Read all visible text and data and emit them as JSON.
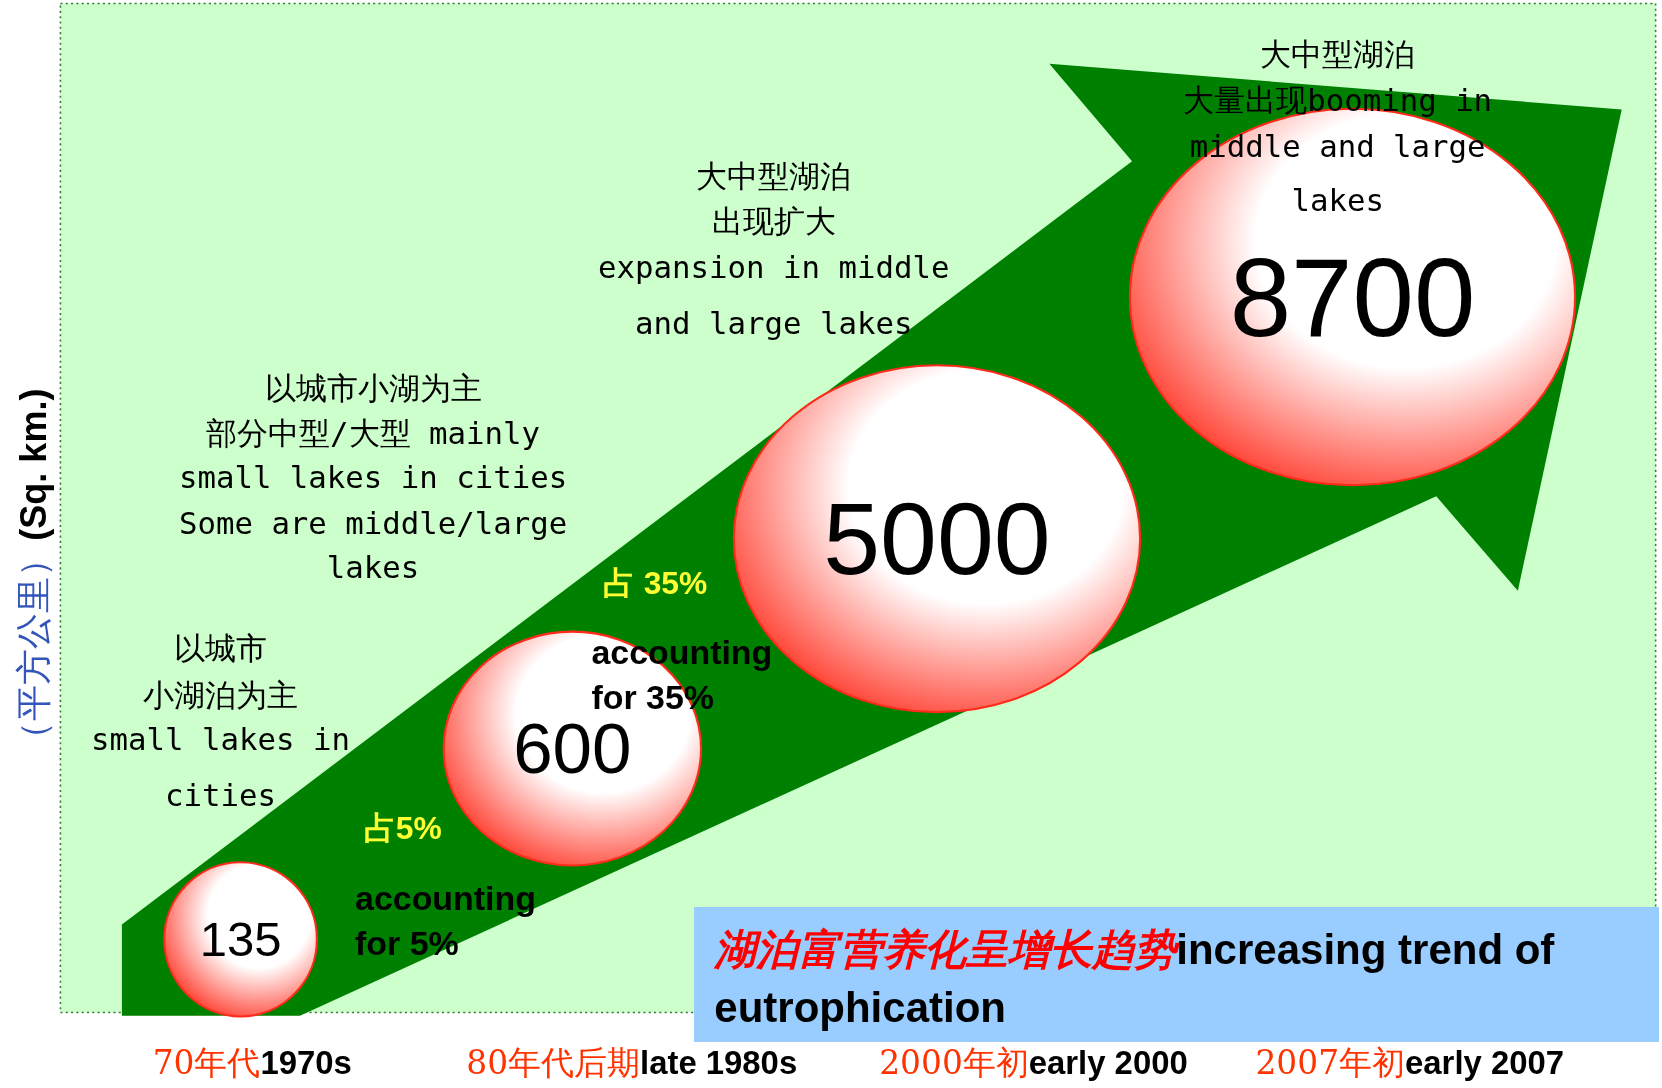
{
  "chart_data": {
    "type": "other",
    "title": "湖泊富营养化呈增长趋势increasing trend of eutrophication",
    "ylabel": "（平方公里）(Sq. km.)",
    "categories": [
      "70年代1970s",
      "80年代后期late 1980s",
      "2000年初early 2000",
      "2007年初early 2007"
    ],
    "values": [
      135,
      600,
      5000,
      8700
    ],
    "color": "#ff2a1a",
    "data_labels": true,
    "annotations": [
      "以城市小湖泊为主\nsmall lakes in\ncities",
      "以城市小湖为主部分中型/大型 mainly\nsmall lakes in cities\nSome are middle/large\nlakes",
      "大中型湖泊出现扩大\nexpansion in middle\nand large lakes",
      "大中型湖泊大量出现booming in\nmiddle and large\nlakes",
      "占5%",
      "accounting\nfor 5%",
      "占 35%",
      "accounting\nfor 35%"
    ]
  }
}
